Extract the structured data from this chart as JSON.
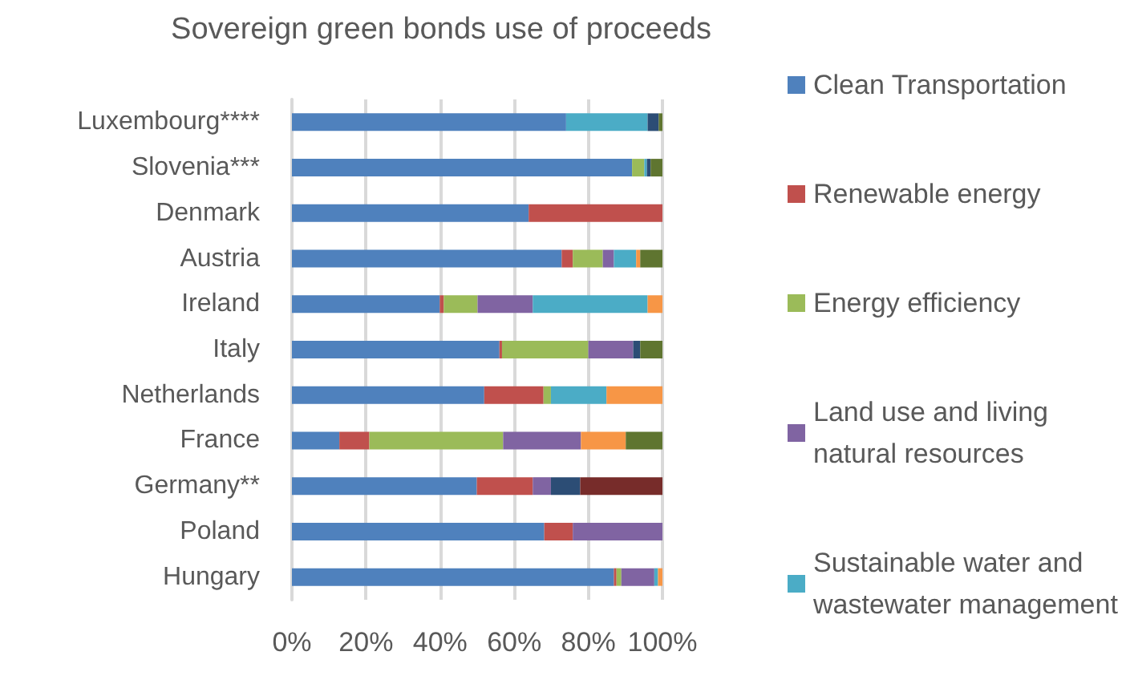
{
  "chart_data": {
    "type": "bar",
    "orientation": "horizontal",
    "stacked": true,
    "title": "Sovereign green bonds use of proceeds",
    "categories": [
      "Luxembourg****",
      "Slovenia***",
      "Denmark",
      "Austria",
      "Ireland",
      "Italy",
      "Netherlands",
      "France",
      "Germany**",
      "Poland",
      "Hungary"
    ],
    "series": [
      {
        "name": "Clean Transportation",
        "color": "#4f81bd",
        "values": [
          74,
          91.8,
          63.9,
          72.8,
          39.9,
          56,
          51.9,
          12.8,
          49.9,
          68.1,
          86.9
        ]
      },
      {
        "name": "Renewable energy",
        "color": "#c0504d",
        "values": [
          0,
          0,
          36.1,
          3,
          1.1,
          0.7,
          16,
          8.1,
          15.1,
          7.7,
          0.7
        ]
      },
      {
        "name": "Energy efficiency",
        "color": "#9bbb59",
        "values": [
          0,
          3.3,
          0,
          8.1,
          9.1,
          23.3,
          2,
          36.1,
          0,
          0,
          1.3
        ]
      },
      {
        "name": "Land use and living natural resources",
        "color": "#8064a2",
        "values": [
          0,
          0,
          0,
          3,
          14.9,
          12.1,
          0,
          21,
          4.9,
          24.2,
          8.9
        ]
      },
      {
        "name": "Sustainable water and wastewater management",
        "color": "#4bacc6",
        "values": [
          22,
          0.7,
          0,
          6,
          31,
          0,
          15,
          0,
          0,
          0,
          1
        ]
      },
      {
        "color": "#f79646",
        "values": [
          0,
          0,
          0,
          1.1,
          4,
          0,
          15.1,
          12.1,
          0,
          0,
          1.2
        ]
      },
      {
        "color": "#2c4d75",
        "values": [
          3,
          1,
          0,
          0,
          0,
          1.9,
          0,
          0,
          7.9,
          0,
          0
        ]
      },
      {
        "color": "#5f7530",
        "values": [
          1,
          3.2,
          0,
          6,
          0,
          6,
          0,
          9.9,
          0,
          0,
          0
        ]
      },
      {
        "color": "#772c2a",
        "values": [
          0,
          0,
          0,
          0,
          0,
          0,
          0,
          0,
          22.2,
          0,
          0
        ]
      }
    ],
    "xlim": [
      0,
      100
    ],
    "xticks": [
      {
        "value": 0,
        "label": "0%"
      },
      {
        "value": 20,
        "label": "20%"
      },
      {
        "value": 40,
        "label": "40%"
      },
      {
        "value": 60,
        "label": "60%"
      },
      {
        "value": 80,
        "label": "80%"
      },
      {
        "value": 100,
        "label": "100%"
      }
    ],
    "grid": "x",
    "legend": "right"
  }
}
